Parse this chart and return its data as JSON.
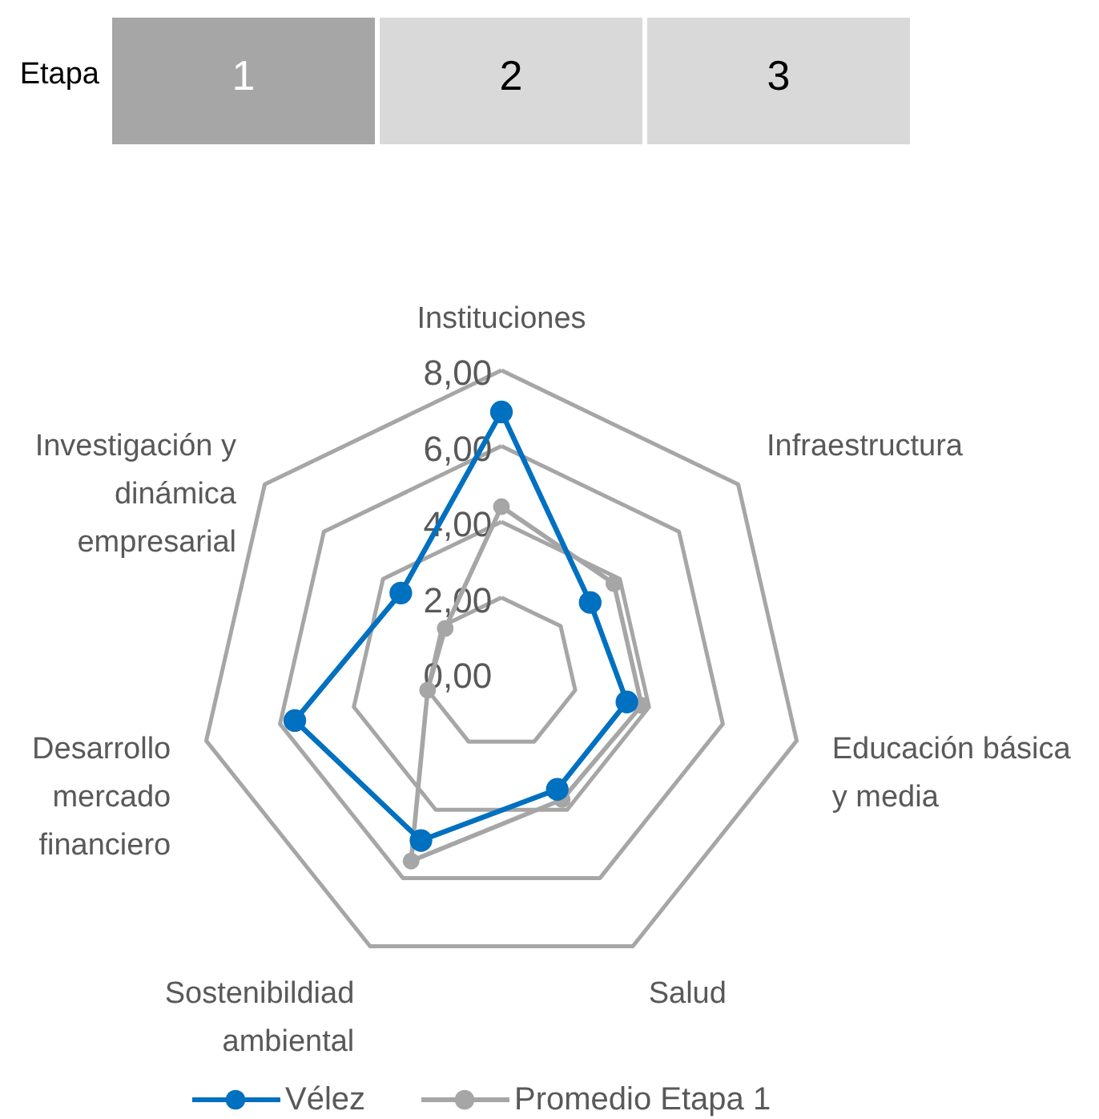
{
  "chart_data": {
    "type": "radar",
    "annotations": [
      "Etapa",
      "1",
      "2",
      "3"
    ],
    "categories": [
      "Instituciones",
      "Infraestructura",
      "Educación básica y media",
      "Salud",
      "Sostenibildiad ambiental",
      "Desarrollo mercado financiero",
      "Investigación y dinámica empresarial"
    ],
    "series": [
      {
        "name": "Vélez",
        "color": "#0070c0",
        "values": [
          6.9,
          3.0,
          3.4,
          3.4,
          4.9,
          5.6,
          3.4
        ]
      },
      {
        "name": "Promedio Etapa 1",
        "color": "#a6a6a6",
        "values": [
          4.4,
          3.8,
          3.8,
          3.7,
          5.5,
          2.0,
          1.9
        ]
      }
    ],
    "ylim": [
      0,
      8
    ],
    "yticks": [
      {
        "value": 0,
        "label": "0,00"
      },
      {
        "value": 2,
        "label": "2,00"
      },
      {
        "value": 4,
        "label": "4,00"
      },
      {
        "value": 6,
        "label": "6,00"
      },
      {
        "value": 8,
        "label": "8,00"
      }
    ],
    "marker": "circle",
    "line_style": "solid",
    "legend": "bottom",
    "grid": true
  }
}
